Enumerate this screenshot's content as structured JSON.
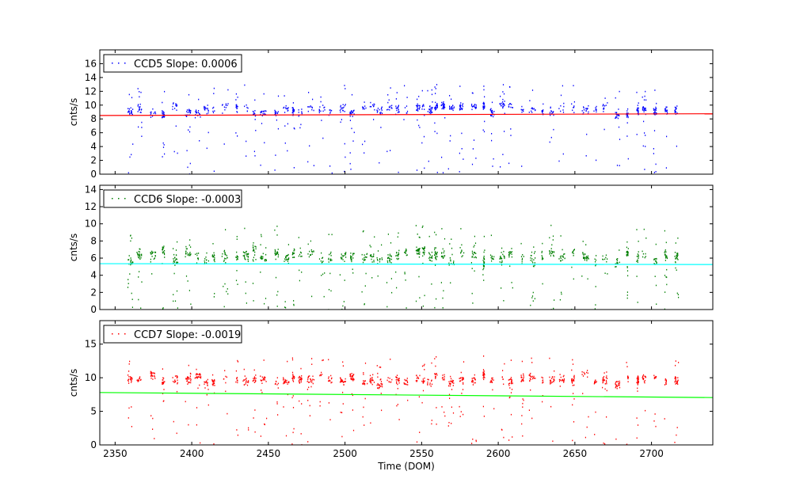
{
  "chart_data": [
    {
      "type": "scatter",
      "legend": "CCD5 Slope: 0.0006",
      "ylabel": "cnts/s",
      "xlabel": "",
      "xlim": [
        2340,
        2740
      ],
      "ylim": [
        0,
        18
      ],
      "yticks": [
        "0",
        "2",
        "4",
        "6",
        "8",
        "10",
        "12",
        "14",
        "16"
      ],
      "xticks": [],
      "show_xtick_labels": false,
      "point_color": "#0000ff",
      "fit_color": "#ff0000",
      "fit": {
        "x": [
          2340,
          2740
        ],
        "y": [
          8.5,
          8.75
        ]
      },
      "band_level": 9.5,
      "band_spread": 2.2,
      "legend_placement": "upper-left"
    },
    {
      "type": "scatter",
      "legend": "CCD6 Slope: -0.0003",
      "ylabel": "cnts/s",
      "xlabel": "",
      "xlim": [
        2340,
        2740
      ],
      "ylim": [
        0,
        14.5
      ],
      "yticks": [
        "0",
        "2",
        "4",
        "6",
        "8",
        "10",
        "12",
        "14"
      ],
      "xticks": [],
      "show_xtick_labels": false,
      "point_color": "#007f00",
      "fit_color": "#00ffff",
      "fit": {
        "x": [
          2340,
          2740
        ],
        "y": [
          5.35,
          5.25
        ]
      },
      "band_level": 6.4,
      "band_spread": 2.0,
      "legend_placement": "upper-left"
    },
    {
      "type": "scatter",
      "legend": "CCD7 Slope: -0.0019",
      "ylabel": "cnts/s",
      "xlabel": "Time (DOM)",
      "xlim": [
        2340,
        2740
      ],
      "ylim": [
        0,
        18.5
      ],
      "yticks": [
        "0",
        "5",
        "10",
        "15"
      ],
      "xticks": [
        "2350",
        "2400",
        "2450",
        "2500",
        "2550",
        "2600",
        "2650",
        "2700"
      ],
      "show_xtick_labels": true,
      "point_color": "#ff0000",
      "fit_color": "#00ff00",
      "fit": {
        "x": [
          2340,
          2740
        ],
        "y": [
          7.8,
          7.05
        ]
      },
      "band_level": 9.8,
      "band_spread": 2.0,
      "legend_placement": "upper-left"
    }
  ]
}
